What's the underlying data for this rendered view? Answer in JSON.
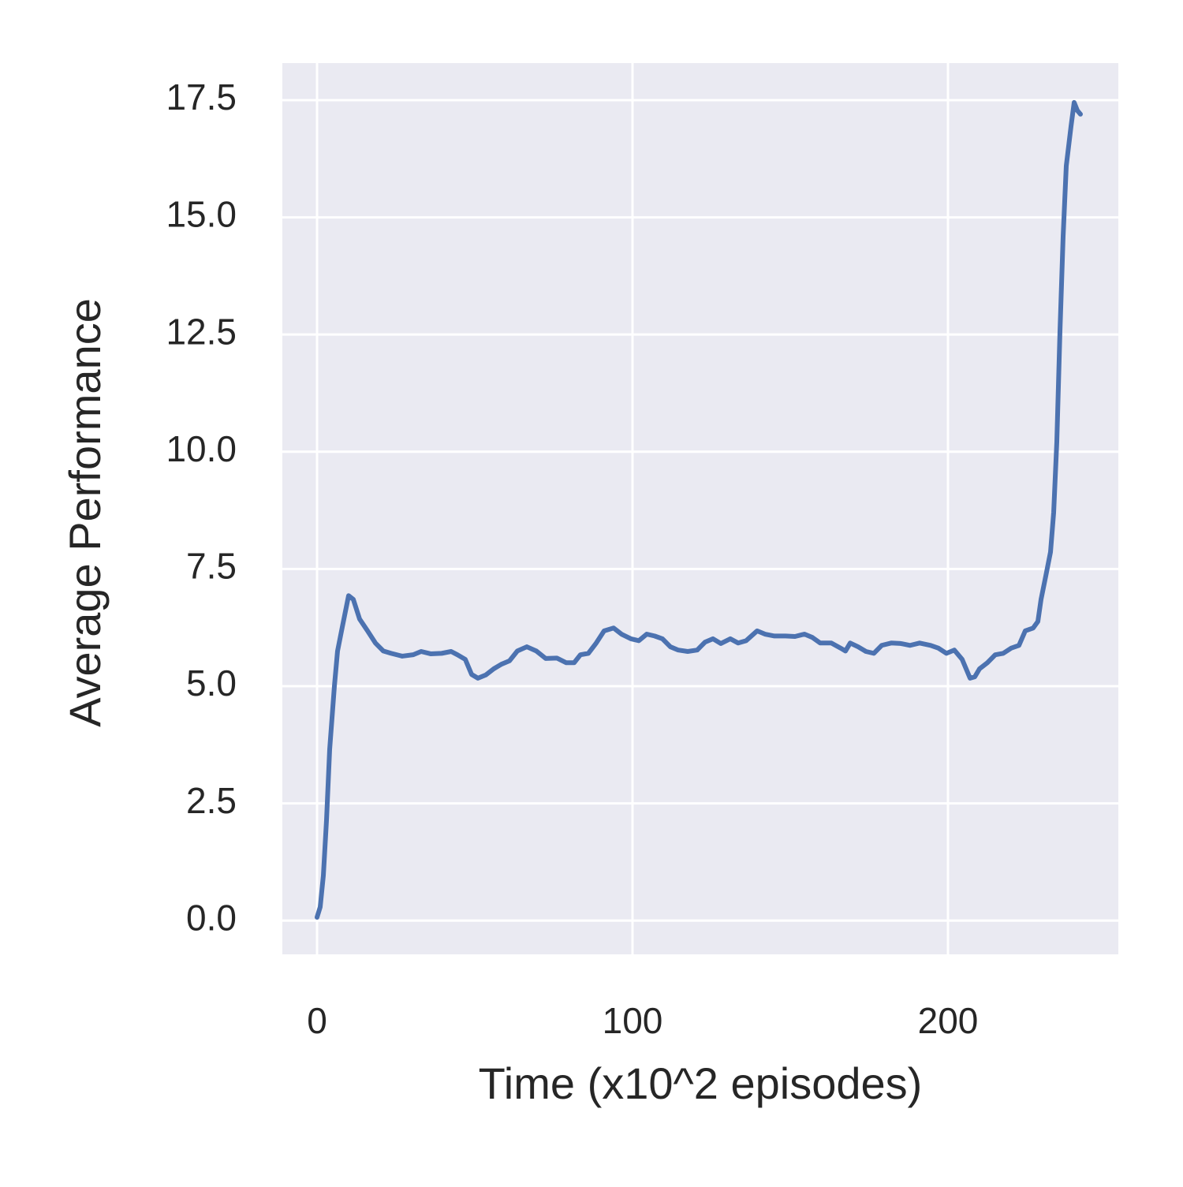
{
  "chart_data": {
    "type": "line",
    "x_label": "Time (x10^2 episodes)",
    "y_label": "Average Performance",
    "x": [
      0,
      1,
      2,
      3,
      4,
      5.5,
      6.5,
      8,
      10,
      11.5,
      13.5,
      16,
      18.5,
      21,
      23.5,
      27,
      30.5,
      33,
      36,
      39.5,
      42.5,
      44.5,
      47,
      49,
      51,
      53.5,
      56,
      58.5,
      61,
      63.5,
      66.5,
      69.5,
      72.5,
      76,
      79,
      81.5,
      83.5,
      86,
      88.5,
      91,
      94,
      96.5,
      99.5,
      102,
      104.5,
      107,
      109.5,
      112,
      114.5,
      117.5,
      120.5,
      123,
      125.5,
      128,
      131,
      133.5,
      136,
      139.5,
      142,
      145,
      148.5,
      151.5,
      154.5,
      157,
      159.5,
      163,
      166,
      167.5,
      169,
      171.5,
      174,
      176.5,
      179,
      182,
      185,
      188,
      191,
      194.5,
      197,
      199.5,
      202,
      204.5,
      207,
      208.5,
      210,
      212.5,
      215,
      217.5,
      220,
      222.5,
      224.5,
      227,
      228.5,
      229.5,
      231,
      232.5,
      233.5,
      234.5,
      235.5,
      236.5,
      237.5,
      239,
      240,
      241,
      242
    ],
    "values": [
      0.07,
      0.29,
      0.96,
      2.14,
      3.65,
      5.0,
      5.75,
      6.26,
      6.93,
      6.85,
      6.43,
      6.18,
      5.92,
      5.75,
      5.7,
      5.64,
      5.67,
      5.74,
      5.69,
      5.7,
      5.74,
      5.67,
      5.57,
      5.25,
      5.17,
      5.24,
      5.37,
      5.47,
      5.54,
      5.75,
      5.84,
      5.75,
      5.59,
      5.6,
      5.5,
      5.5,
      5.67,
      5.7,
      5.92,
      6.18,
      6.24,
      6.11,
      6.01,
      5.97,
      6.11,
      6.07,
      6.01,
      5.84,
      5.77,
      5.74,
      5.77,
      5.94,
      6.01,
      5.91,
      6.01,
      5.92,
      5.97,
      6.18,
      6.11,
      6.07,
      6.07,
      6.06,
      6.11,
      6.04,
      5.92,
      5.92,
      5.81,
      5.75,
      5.92,
      5.84,
      5.74,
      5.7,
      5.87,
      5.92,
      5.91,
      5.87,
      5.92,
      5.87,
      5.81,
      5.7,
      5.77,
      5.57,
      5.17,
      5.2,
      5.37,
      5.5,
      5.67,
      5.7,
      5.81,
      5.87,
      6.18,
      6.24,
      6.38,
      6.85,
      7.35,
      7.86,
      8.7,
      10.21,
      12.57,
      14.59,
      16.1,
      16.94,
      17.45,
      17.28,
      17.2
    ],
    "color": "#4c72b0",
    "xlim": [
      -11,
      254
    ],
    "ylim": [
      -0.72,
      18.29
    ],
    "xticks": [
      0,
      100,
      200
    ],
    "yticks": [
      {
        "value": 0,
        "label": "0.0"
      },
      {
        "value": 2.5,
        "label": "2.5"
      },
      {
        "value": 5,
        "label": "5.0"
      },
      {
        "value": 7.5,
        "label": "7.5"
      },
      {
        "value": 10,
        "label": "10.0"
      },
      {
        "value": 12.5,
        "label": "12.5"
      },
      {
        "value": 15,
        "label": "15.0"
      },
      {
        "value": 17.5,
        "label": "17.5"
      }
    ],
    "grid": true
  }
}
